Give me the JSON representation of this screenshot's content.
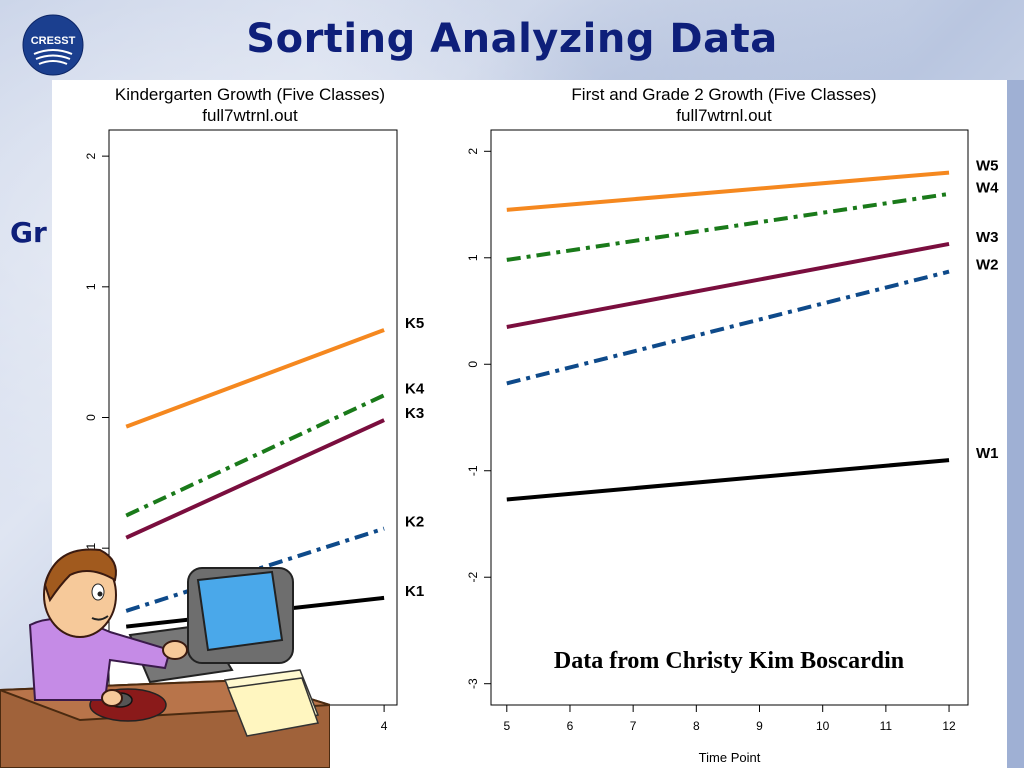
{
  "slide": {
    "title": "Sorting Analyzing Data",
    "logo_text": "CRESST",
    "partial_text": "Gr",
    "caption": "Data from Christy Kim Boscardin"
  },
  "chart_data": [
    {
      "type": "line",
      "title": "Kindergarten Growth (Five Classes)",
      "subtitle": "full7wtrnl.out",
      "xlabel": "",
      "ylabel": "",
      "yticks": [
        -1,
        0,
        1,
        2
      ],
      "xticks": [
        4
      ],
      "ylim": [
        -2.2,
        2.2
      ],
      "xlim": [
        0.8,
        4.15
      ],
      "series": [
        {
          "name": "K5",
          "x": [
            1,
            4
          ],
          "y": [
            -0.07,
            0.67
          ],
          "color": "#f5881f",
          "style": "solid"
        },
        {
          "name": "K4",
          "x": [
            1,
            4
          ],
          "y": [
            -0.75,
            0.17
          ],
          "color": "#1a7a1a",
          "style": "dashdot"
        },
        {
          "name": "K3",
          "x": [
            1,
            4
          ],
          "y": [
            -0.92,
            -0.02
          ],
          "color": "#7a0e3e",
          "style": "solid"
        },
        {
          "name": "K2",
          "x": [
            1,
            4
          ],
          "y": [
            -1.48,
            -0.85
          ],
          "color": "#0e4a8a",
          "style": "dashdot"
        },
        {
          "name": "K1",
          "x": [
            1,
            4
          ],
          "y": [
            -1.6,
            -1.38
          ],
          "color": "#000000",
          "style": "solid"
        }
      ]
    },
    {
      "type": "line",
      "title": "First and Grade 2 Growth (Five Classes)",
      "subtitle": "full7wtrnl.out",
      "xlabel": "Time Point",
      "ylabel": "",
      "yticks": [
        -3,
        -2,
        -1,
        0,
        1,
        2
      ],
      "xticks": [
        5,
        6,
        7,
        8,
        9,
        10,
        11,
        12
      ],
      "ylim": [
        -3.2,
        2.2
      ],
      "xlim": [
        4.75,
        12.3
      ],
      "series": [
        {
          "name": "W5",
          "x": [
            5,
            12
          ],
          "y": [
            1.45,
            1.8
          ],
          "color": "#f5881f",
          "style": "solid"
        },
        {
          "name": "W4",
          "x": [
            5,
            12
          ],
          "y": [
            0.98,
            1.6
          ],
          "color": "#1a7a1a",
          "style": "dashdot"
        },
        {
          "name": "W3",
          "x": [
            5,
            12
          ],
          "y": [
            0.35,
            1.13
          ],
          "color": "#7a0e3e",
          "style": "solid"
        },
        {
          "name": "W2",
          "x": [
            5,
            12
          ],
          "y": [
            -0.18,
            0.87
          ],
          "color": "#0e4a8a",
          "style": "dashdot"
        },
        {
          "name": "W1",
          "x": [
            5,
            12
          ],
          "y": [
            -1.27,
            -0.9
          ],
          "color": "#000000",
          "style": "solid"
        }
      ]
    }
  ]
}
